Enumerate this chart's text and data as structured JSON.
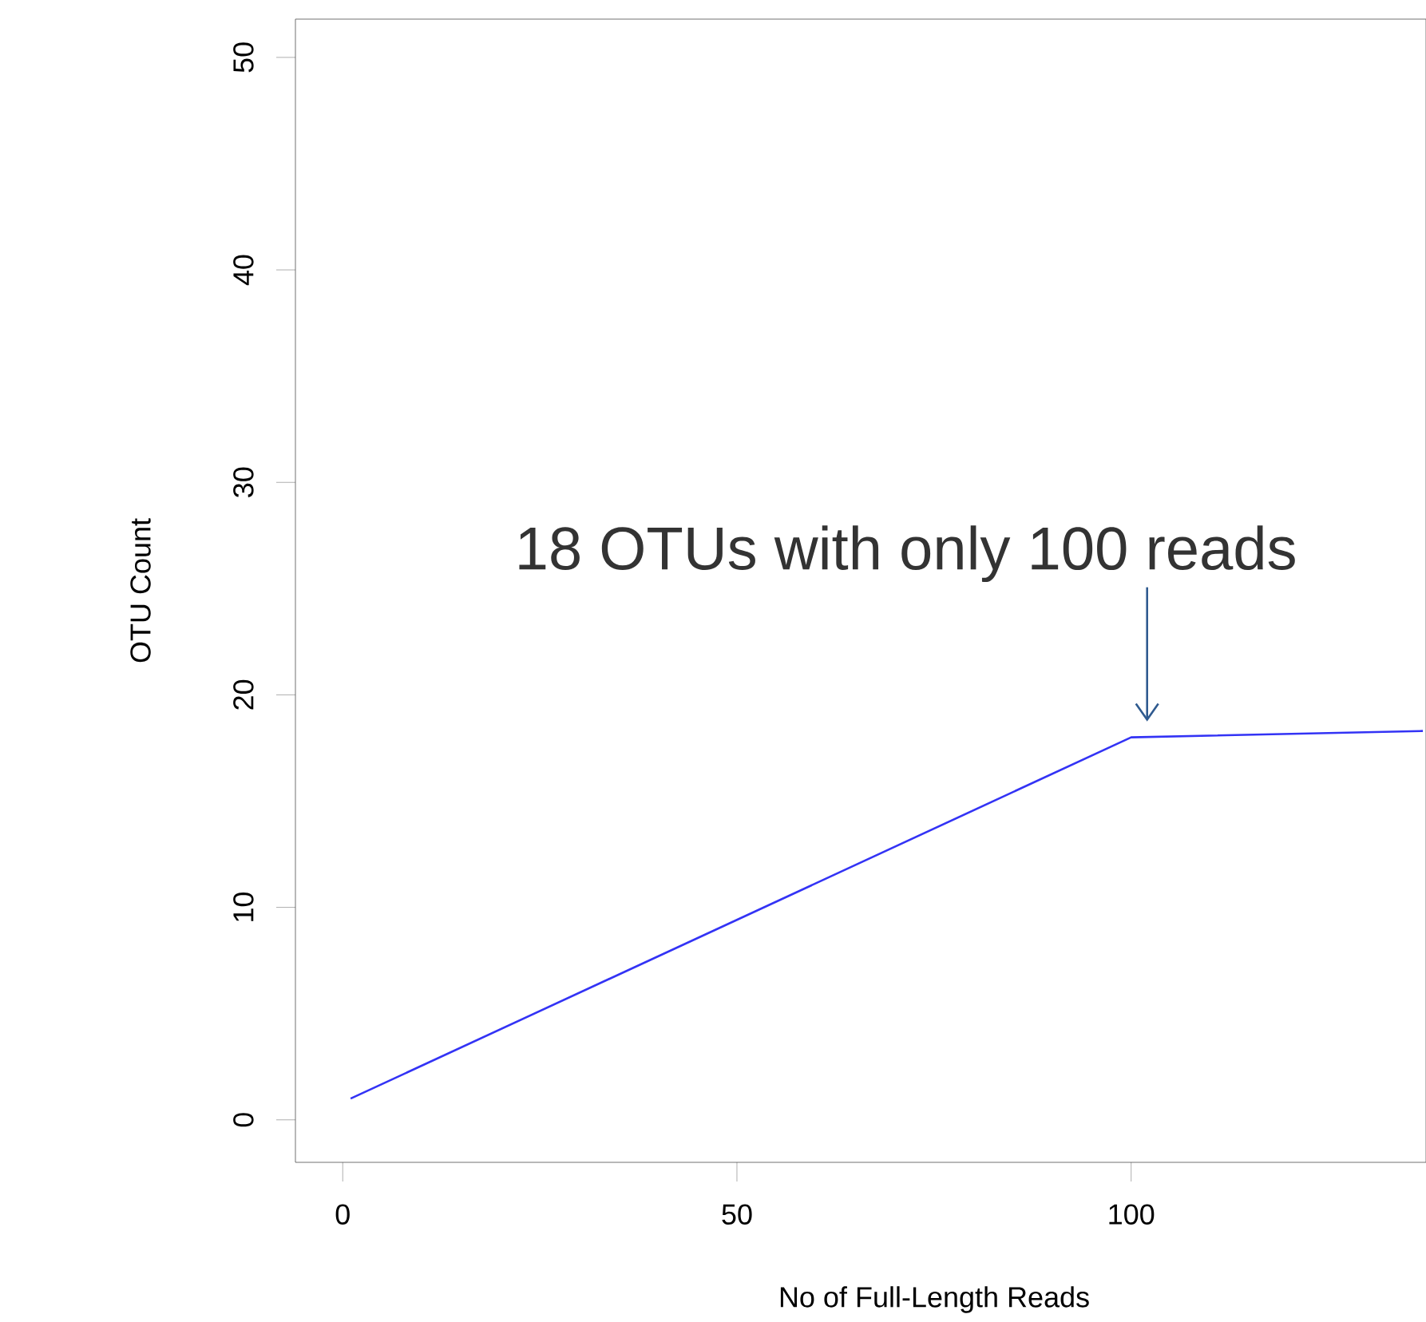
{
  "chart_data": {
    "type": "line",
    "xlabel": "No of Full-Length Reads",
    "ylabel": "OTU Count",
    "x": [
      1,
      100,
      137
    ],
    "series": [
      {
        "color": "#3333f5",
        "values": [
          1,
          18,
          18.3
        ]
      }
    ],
    "annotations": [
      {
        "text": "18 OTUs with only 100 reads",
        "x": 100,
        "y": 18
      }
    ],
    "xlim": [
      -6,
      137.4
    ],
    "ylim": [
      -2,
      51.8
    ],
    "xticks": [
      0,
      50,
      100
    ],
    "yticks": [
      0,
      10,
      20,
      30,
      40,
      50
    ],
    "grid": false
  }
}
